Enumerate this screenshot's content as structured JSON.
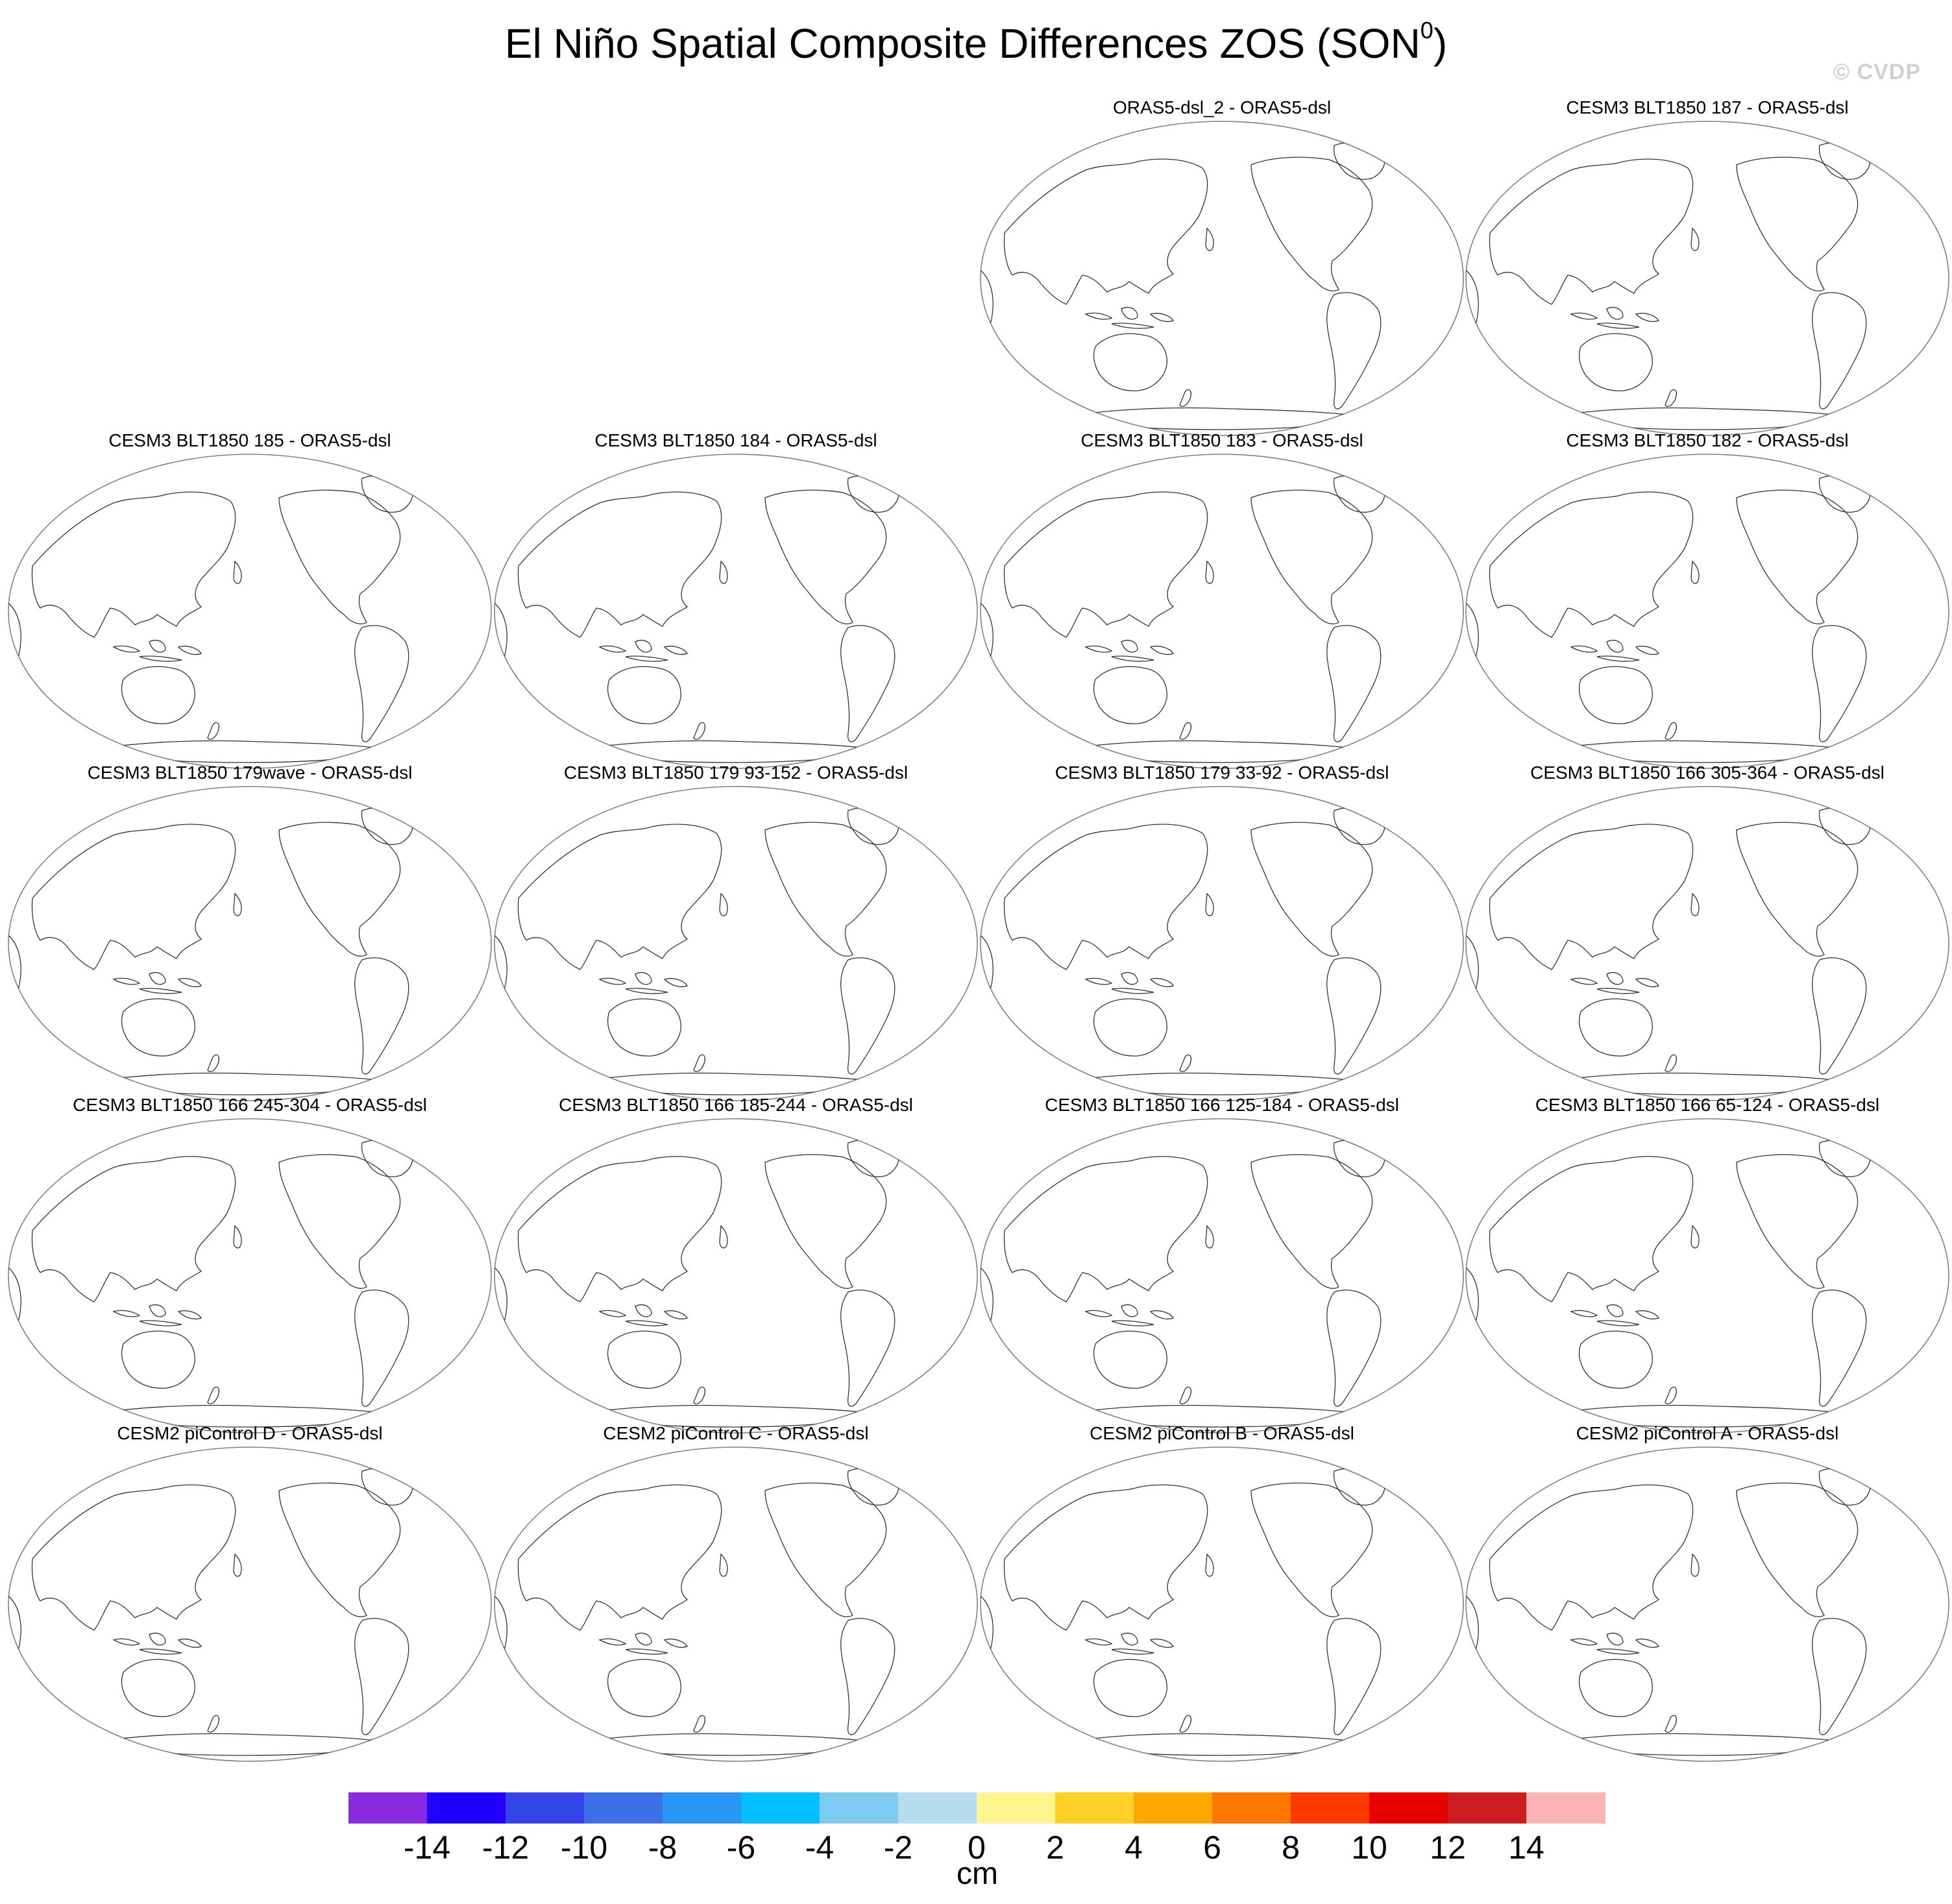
{
  "title": {
    "main": "El Niño Spatial Composite Differences ZOS (SON",
    "superscript": "0",
    "close": ")"
  },
  "watermark": "© CVDP",
  "panels": [
    {
      "title": "ORAS5-dsl_2 - ORAS5-dsl"
    },
    {
      "title": "CESM3 BLT1850 187 - ORAS5-dsl"
    },
    {
      "title": "CESM3 BLT1850 185 - ORAS5-dsl"
    },
    {
      "title": "CESM3 BLT1850 184 - ORAS5-dsl"
    },
    {
      "title": "CESM3 BLT1850 183 - ORAS5-dsl"
    },
    {
      "title": "CESM3 BLT1850 182 - ORAS5-dsl"
    },
    {
      "title": "CESM3 BLT1850 179wave - ORAS5-dsl"
    },
    {
      "title": "CESM3 BLT1850 179 93-152 - ORAS5-dsl"
    },
    {
      "title": "CESM3 BLT1850 179 33-92 - ORAS5-dsl"
    },
    {
      "title": "CESM3 BLT1850 166 305-364 - ORAS5-dsl"
    },
    {
      "title": "CESM3 BLT1850 166 245-304 - ORAS5-dsl"
    },
    {
      "title": "CESM3 BLT1850 166 185-244 - ORAS5-dsl"
    },
    {
      "title": "CESM3 BLT1850 166 125-184 - ORAS5-dsl"
    },
    {
      "title": "CESM3 BLT1850 166 65-124 - ORAS5-dsl"
    },
    {
      "title": "CESM2 piControl D - ORAS5-dsl"
    },
    {
      "title": "CESM2 piControl C - ORAS5-dsl"
    },
    {
      "title": "CESM2 piControl B - ORAS5-dsl"
    },
    {
      "title": "CESM2 piControl A - ORAS5-dsl"
    }
  ],
  "colorbar": {
    "labels": [
      "-14",
      "-12",
      "-10",
      "-8",
      "-6",
      "-4",
      "-2",
      "0",
      "2",
      "4",
      "6",
      "8",
      "10",
      "12",
      "14"
    ],
    "colors": [
      "#8a2be2",
      "#2200ff",
      "#3344e8",
      "#3d6fe8",
      "#2896f5",
      "#00c0ff",
      "#7ecbf2",
      "#b4def0",
      "#fff58e",
      "#ffd128",
      "#ffa800",
      "#ff7700",
      "#ff3a00",
      "#e60000",
      "#cc1e1e",
      "#ffb4b4"
    ],
    "units": "cm"
  }
}
